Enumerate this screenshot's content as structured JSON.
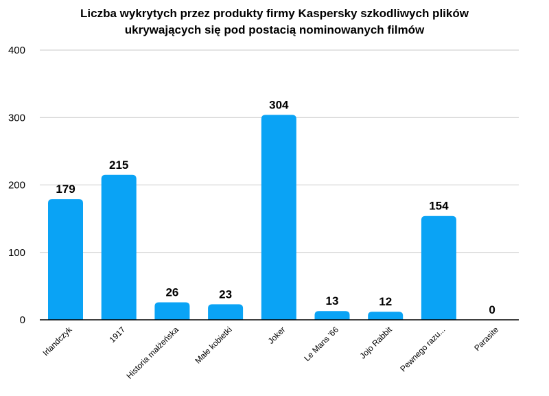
{
  "chart_data": {
    "type": "bar",
    "title_lines": [
      "Liczba wykrytych przez produkty firmy Kaspersky szkodliwych plików",
      "ukrywających się pod postacią nominowanych filmów"
    ],
    "categories": [
      "Irlandczyk",
      "1917",
      "Historia małżeńska",
      "Małe kobietki",
      "Joker",
      "Le Mans '66",
      "Jojo Rabbit",
      "Pewnego razu...",
      "Parasite"
    ],
    "values": [
      179,
      215,
      26,
      23,
      304,
      13,
      12,
      154,
      0
    ],
    "value_labels": [
      "179",
      "215",
      "26",
      "23",
      "304",
      "13",
      "12",
      "154",
      "0"
    ],
    "yticks": [
      "0",
      "100",
      "200",
      "300",
      "400"
    ],
    "ylim": [
      0,
      400
    ],
    "grid": true,
    "legend": "none",
    "colors": {
      "bar": "#0aa3f5",
      "grid": "#c8c8c8",
      "axis": "#000000"
    }
  }
}
